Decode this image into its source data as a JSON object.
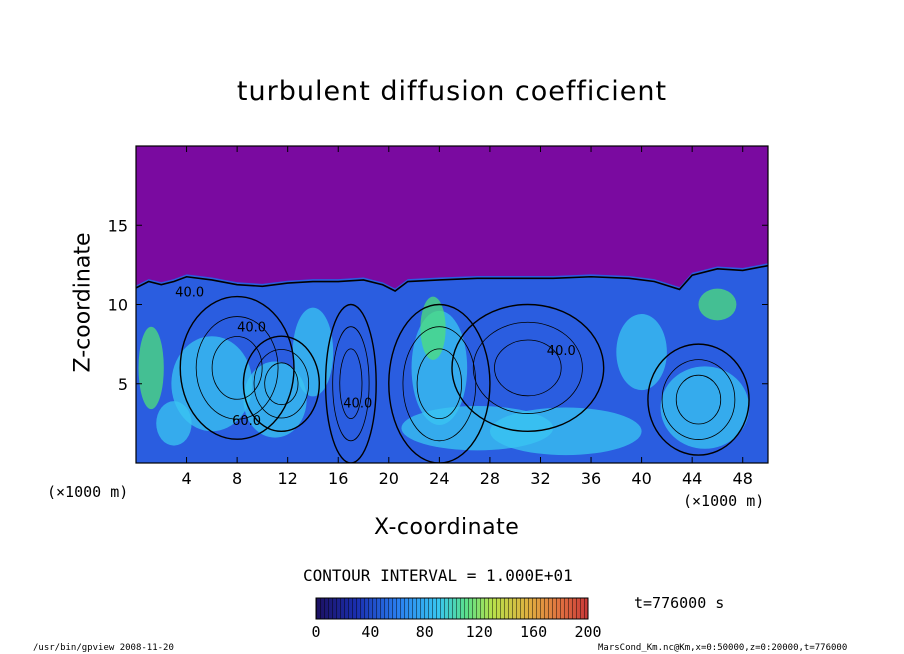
{
  "title": "turbulent diffusion coefficient",
  "xlabel": "X-coordinate",
  "ylabel": "Z-coordinate",
  "x_unit_left": "(×1000 m)",
  "x_unit_right": "(×1000 m)",
  "contour_interval": "CONTOUR INTERVAL = 1.000E+01",
  "time_label": "t=776000  s",
  "footer_left": "/usr/bin/gpview   2008-11-20",
  "footer_right": "MarsCond_Km.nc@Km,x=0:50000,z=0:20000,t=776000",
  "colors": {
    "background_low": "#7a0aa0",
    "field_mid": "#2a5de0",
    "field_light": "#39c6f2",
    "field_green": "#4de07a",
    "frame": "#000000"
  },
  "chart_data": {
    "type": "heatmap",
    "title": "turbulent diffusion coefficient",
    "xlabel": "X-coordinate",
    "ylabel": "Z-coordinate",
    "xlim": [
      0,
      50
    ],
    "ylim": [
      0,
      20
    ],
    "x_ticks": [
      4,
      8,
      12,
      16,
      20,
      24,
      28,
      32,
      36,
      40,
      44,
      48
    ],
    "y_ticks": [
      5,
      10,
      15
    ],
    "contour_labels": [
      {
        "text": "40.0",
        "x": 8.0,
        "z": 8.3
      },
      {
        "text": "40.0",
        "x": 32.5,
        "z": 6.8
      },
      {
        "text": "40.0",
        "x": 16.4,
        "z": 3.5
      },
      {
        "text": "60.0",
        "x": 7.6,
        "z": 2.4
      },
      {
        "text": "40.0",
        "x": 3.1,
        "z": 10.5
      }
    ],
    "mixed_layer_top": [
      [
        0,
        11.2
      ],
      [
        1,
        11.6
      ],
      [
        2,
        11.4
      ],
      [
        3,
        11.6
      ],
      [
        4,
        11.9
      ],
      [
        6,
        11.7
      ],
      [
        8,
        11.4
      ],
      [
        10,
        11.3
      ],
      [
        12,
        11.5
      ],
      [
        14,
        11.6
      ],
      [
        16,
        11.6
      ],
      [
        18,
        11.7
      ],
      [
        19.5,
        11.4
      ],
      [
        20.5,
        11.0
      ],
      [
        21.5,
        11.6
      ],
      [
        24,
        11.7
      ],
      [
        27,
        11.8
      ],
      [
        30,
        11.8
      ],
      [
        33,
        11.8
      ],
      [
        36,
        11.9
      ],
      [
        39,
        11.8
      ],
      [
        41,
        11.6
      ],
      [
        43,
        11.1
      ],
      [
        44,
        12.0
      ],
      [
        46,
        12.4
      ],
      [
        48,
        12.3
      ],
      [
        50,
        12.6
      ]
    ],
    "colorbar": {
      "ticks": [
        0,
        40,
        80,
        120,
        160,
        200
      ],
      "range": [
        0,
        200
      ]
    },
    "time": "t=776000  s"
  }
}
